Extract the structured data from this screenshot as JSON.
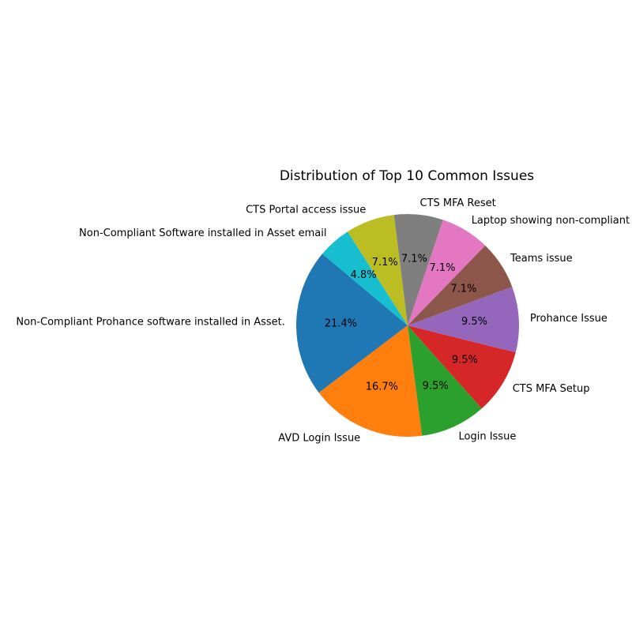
{
  "chart_data": {
    "type": "pie",
    "title": "Distribution of Top 10 Common Issues",
    "start_angle_deg": 140,
    "direction": "counterclockwise",
    "slices": [
      {
        "label": "Non-Compliant Prohance software installed in Asset.",
        "value": 21.4,
        "pct_label": "21.4%",
        "color": "#1f77b4"
      },
      {
        "label": "AVD Login Issue",
        "value": 16.7,
        "pct_label": "16.7%",
        "color": "#ff7f0e"
      },
      {
        "label": "Login Issue",
        "value": 9.5,
        "pct_label": "9.5%",
        "color": "#2ca02c"
      },
      {
        "label": "CTS MFA Setup",
        "value": 9.5,
        "pct_label": "9.5%",
        "color": "#d62728"
      },
      {
        "label": "Prohance Issue",
        "value": 9.5,
        "pct_label": "9.5%",
        "color": "#9467bd"
      },
      {
        "label": "Teams issue",
        "value": 7.1,
        "pct_label": "7.1%",
        "color": "#8c564b"
      },
      {
        "label": "Laptop showing non-compliant",
        "value": 7.1,
        "pct_label": "7.1%",
        "color": "#e377c2"
      },
      {
        "label": "CTS MFA Reset",
        "value": 7.1,
        "pct_label": "7.1%",
        "color": "#7f7f7f"
      },
      {
        "label": "CTS Portal access issue",
        "value": 7.1,
        "pct_label": "7.1%",
        "color": "#bcbd22"
      },
      {
        "label": "Non-Compliant Software installed in Asset email",
        "value": 4.8,
        "pct_label": "4.8%",
        "color": "#17becf"
      }
    ]
  }
}
